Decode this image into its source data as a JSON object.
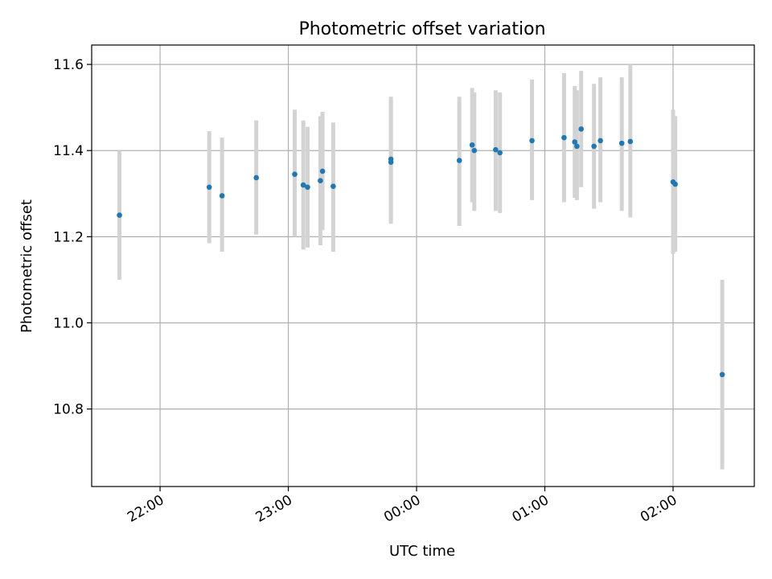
{
  "chart_data": {
    "type": "scatter",
    "title": "Photometric offset variation",
    "xlabel": "UTC time",
    "ylabel": "Photometric offset",
    "xlim": [
      "21:28",
      "02:38"
    ],
    "ylim": [
      10.62,
      11.645
    ],
    "x_ticks": [
      "22:00",
      "23:00",
      "00:00",
      "01:00",
      "02:00"
    ],
    "y_ticks": [
      10.8,
      11.0,
      11.2,
      11.4,
      11.6
    ],
    "grid": true,
    "colors": {
      "points": "#1f77b4",
      "errorbars": "#d3d3d3",
      "grid": "#b0b0b0"
    },
    "points": [
      {
        "t": "21:41",
        "y": 11.25,
        "lo": 11.1,
        "hi": 11.4
      },
      {
        "t": "22:23",
        "y": 11.315,
        "lo": 11.185,
        "hi": 11.445
      },
      {
        "t": "22:29",
        "y": 11.295,
        "lo": 11.165,
        "hi": 11.43
      },
      {
        "t": "22:45",
        "y": 11.337,
        "lo": 11.205,
        "hi": 11.47
      },
      {
        "t": "23:03",
        "y": 11.345,
        "lo": 11.2,
        "hi": 11.495
      },
      {
        "t": "23:07",
        "y": 11.32,
        "lo": 11.17,
        "hi": 11.47
      },
      {
        "t": "23:09",
        "y": 11.315,
        "lo": 11.175,
        "hi": 11.455
      },
      {
        "t": "23:15",
        "y": 11.33,
        "lo": 11.18,
        "hi": 11.48
      },
      {
        "t": "23:16",
        "y": 11.352,
        "lo": 11.215,
        "hi": 11.49
      },
      {
        "t": "23:21",
        "y": 11.317,
        "lo": 11.165,
        "hi": 11.465
      },
      {
        "t": "23:48",
        "y": 11.373,
        "lo": 11.23,
        "hi": 11.52
      },
      {
        "t": "23:48",
        "y": 11.38,
        "lo": 11.235,
        "hi": 11.525
      },
      {
        "t": "00:20",
        "y": 11.377,
        "lo": 11.225,
        "hi": 11.525
      },
      {
        "t": "00:26",
        "y": 11.413,
        "lo": 11.28,
        "hi": 11.545
      },
      {
        "t": "00:27",
        "y": 11.4,
        "lo": 11.26,
        "hi": 11.535
      },
      {
        "t": "00:37",
        "y": 11.402,
        "lo": 11.26,
        "hi": 11.54
      },
      {
        "t": "00:39",
        "y": 11.395,
        "lo": 11.255,
        "hi": 11.535
      },
      {
        "t": "00:54",
        "y": 11.423,
        "lo": 11.285,
        "hi": 11.565
      },
      {
        "t": "01:09",
        "y": 11.43,
        "lo": 11.28,
        "hi": 11.58
      },
      {
        "t": "01:14",
        "y": 11.42,
        "lo": 11.29,
        "hi": 11.55
      },
      {
        "t": "01:15",
        "y": 11.41,
        "lo": 11.285,
        "hi": 11.54
      },
      {
        "t": "01:17",
        "y": 11.45,
        "lo": 11.315,
        "hi": 11.585
      },
      {
        "t": "01:23",
        "y": 11.41,
        "lo": 11.265,
        "hi": 11.555
      },
      {
        "t": "01:26",
        "y": 11.423,
        "lo": 11.28,
        "hi": 11.57
      },
      {
        "t": "01:36",
        "y": 11.417,
        "lo": 11.26,
        "hi": 11.57
      },
      {
        "t": "01:40",
        "y": 11.421,
        "lo": 11.245,
        "hi": 11.6
      },
      {
        "t": "02:00",
        "y": 11.327,
        "lo": 11.16,
        "hi": 11.495
      },
      {
        "t": "02:01",
        "y": 11.322,
        "lo": 11.165,
        "hi": 11.48
      },
      {
        "t": "02:23",
        "y": 10.88,
        "lo": 10.66,
        "hi": 11.1
      }
    ]
  }
}
